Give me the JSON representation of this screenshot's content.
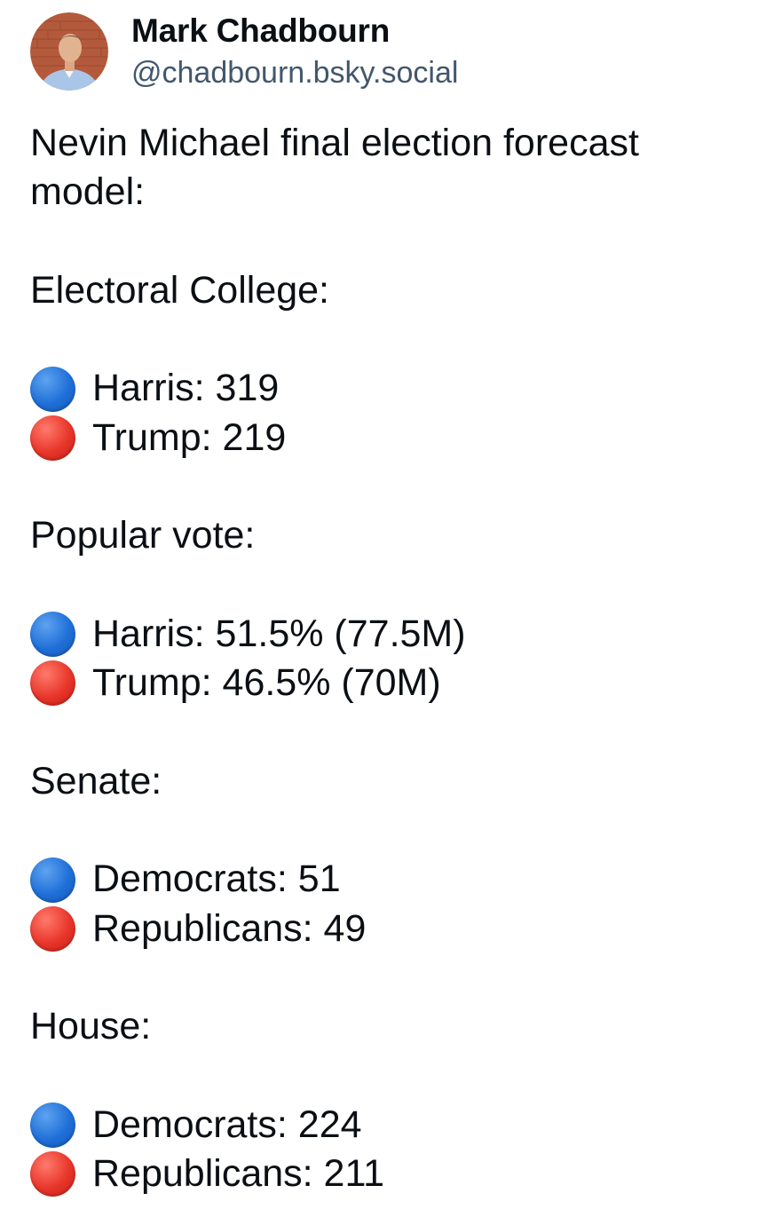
{
  "author": {
    "display_name": "Mark Chadbourn",
    "handle": "@chadbourn.bsky.social"
  },
  "post": {
    "intro": "Nevin Michael final election forecast model:",
    "electoral_college": {
      "heading": "Electoral College:",
      "rows": [
        "Harris: 319",
        "Trump: 219"
      ]
    },
    "popular_vote": {
      "heading": "Popular vote:",
      "rows": [
        "Harris: 51.5% (77.5M)",
        "Trump: 46.5% (70M)"
      ]
    },
    "senate": {
      "heading": "Senate:",
      "rows": [
        "Democrats: 51",
        "Republicans: 49"
      ]
    },
    "house": {
      "heading": "House:",
      "rows": [
        "Democrats: 224",
        "Republicans: 211"
      ]
    }
  },
  "icons": {
    "blue": "large-blue-circle-icon",
    "red": "large-red-circle-icon"
  },
  "colors": {
    "handle": "#42576c",
    "text": "#0b0f14",
    "blue_circle": "#1f6fd8",
    "red_circle": "#e8352a"
  }
}
